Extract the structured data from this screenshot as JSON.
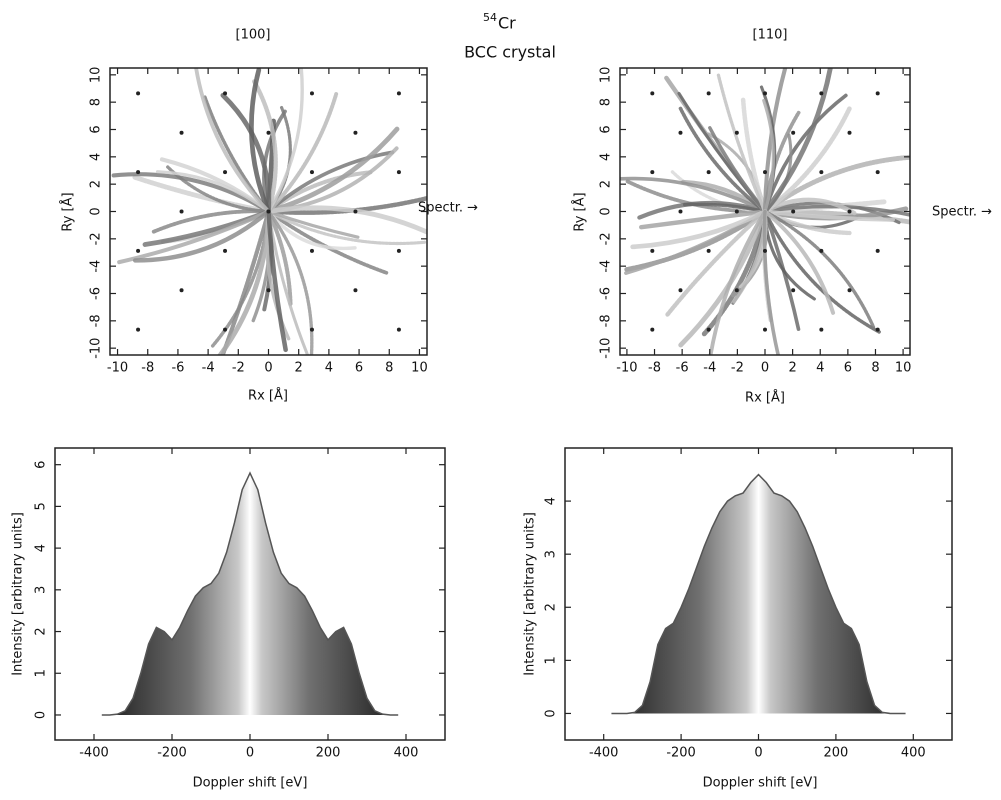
{
  "figure": {
    "title_superscript": "54",
    "title": "Cr",
    "subtitle": "BCC crystal"
  },
  "chart_data": [
    {
      "type": "scatter",
      "title": "[100]",
      "x_label": "Rx [Å]",
      "y_label": "Ry [Å]",
      "annotation": "Spectr. →",
      "x": [
        -8.64,
        -8.64,
        -8.64,
        -8.64,
        -5.76,
        -5.76,
        -5.76,
        -2.88,
        -2.88,
        -2.88,
        -2.88,
        0,
        0,
        0,
        2.88,
        2.88,
        2.88,
        2.88,
        5.76,
        5.76,
        5.76,
        8.64,
        8.64,
        8.64,
        8.64
      ],
      "y": [
        -8.64,
        -2.88,
        2.88,
        8.64,
        -5.76,
        0,
        5.76,
        -8.64,
        -2.88,
        2.88,
        8.64,
        -5.76,
        0,
        5.76,
        -8.64,
        -2.88,
        2.88,
        8.64,
        -5.76,
        0,
        5.76,
        -8.64,
        -2.88,
        2.88,
        8.64
      ],
      "color": "#222222",
      "xlim": [
        -10.5,
        10.5
      ],
      "ylim": [
        -10.5,
        10.5
      ],
      "xticks": [
        -10,
        -8,
        -6,
        -4,
        -2,
        0,
        2,
        4,
        6,
        8,
        10
      ],
      "yticks": [
        -10,
        -8,
        -6,
        -4,
        -2,
        0,
        2,
        4,
        6,
        8,
        10
      ]
    },
    {
      "type": "scatter",
      "title": "[110]",
      "x_label": "Rx [Å]",
      "y_label": "Ry [Å]",
      "annotation": "Spectr. →",
      "x": [
        -8.16,
        -8.16,
        -8.16,
        -8.16,
        -6.12,
        -6.12,
        -6.12,
        -4.08,
        -4.08,
        -4.08,
        -4.08,
        -2.04,
        -2.04,
        -2.04,
        0,
        0,
        0,
        0,
        2.04,
        2.04,
        2.04,
        4.08,
        4.08,
        4.08,
        4.08,
        6.12,
        6.12,
        6.12,
        8.16,
        8.16,
        8.16,
        8.16
      ],
      "y": [
        -8.64,
        -2.88,
        2.88,
        8.64,
        -5.76,
        0,
        5.76,
        -8.64,
        -2.88,
        2.88,
        8.64,
        -5.76,
        0,
        5.76,
        -8.64,
        -2.88,
        2.88,
        8.64,
        -5.76,
        0,
        5.76,
        -8.64,
        -2.88,
        2.88,
        8.64,
        -5.76,
        0,
        5.76,
        -8.64,
        -2.88,
        2.88,
        8.64
      ],
      "color": "#222222",
      "xlim": [
        -10.5,
        10.5
      ],
      "ylim": [
        -10.5,
        10.5
      ],
      "xticks": [
        -10,
        -8,
        -6,
        -4,
        -2,
        0,
        2,
        4,
        6,
        8,
        10
      ],
      "yticks": [
        -10,
        -8,
        -6,
        -4,
        -2,
        0,
        2,
        4,
        6,
        8,
        10
      ]
    },
    {
      "type": "area",
      "x_label": "Doppler shift [eV]",
      "y_label": "Intensity [arbitrary units]",
      "x": [
        -380,
        -360,
        -340,
        -320,
        -300,
        -280,
        -260,
        -240,
        -220,
        -200,
        -180,
        -160,
        -140,
        -120,
        -100,
        -80,
        -60,
        -40,
        -20,
        0,
        20,
        40,
        60,
        80,
        100,
        120,
        140,
        160,
        180,
        200,
        220,
        240,
        260,
        280,
        300,
        320,
        340,
        360,
        380
      ],
      "values": [
        0,
        0,
        0.02,
        0.1,
        0.4,
        1.0,
        1.7,
        2.1,
        2.0,
        1.8,
        2.1,
        2.5,
        2.85,
        3.05,
        3.15,
        3.4,
        3.9,
        4.6,
        5.4,
        5.8,
        5.4,
        4.6,
        3.9,
        3.4,
        3.15,
        3.05,
        2.85,
        2.5,
        2.1,
        1.8,
        2.0,
        2.1,
        1.7,
        1.0,
        0.4,
        0.1,
        0.02,
        0,
        0
      ],
      "color": "#555555",
      "xlim": [
        -500,
        500
      ],
      "ylim": [
        -0.6,
        6.4
      ],
      "xticks": [
        -400,
        -200,
        0,
        200,
        400
      ],
      "yticks": [
        0,
        1,
        2,
        3,
        4,
        5,
        6
      ]
    },
    {
      "type": "area",
      "x_label": "Doppler shift [eV]",
      "y_label": "Intensity [arbitrary units]",
      "x": [
        -380,
        -360,
        -340,
        -320,
        -300,
        -280,
        -260,
        -240,
        -220,
        -200,
        -180,
        -160,
        -140,
        -120,
        -100,
        -80,
        -60,
        -40,
        -20,
        0,
        20,
        40,
        60,
        80,
        100,
        120,
        140,
        160,
        180,
        200,
        220,
        240,
        260,
        280,
        300,
        320,
        340,
        360,
        380
      ],
      "values": [
        0,
        0,
        0,
        0.02,
        0.15,
        0.6,
        1.3,
        1.6,
        1.7,
        2.0,
        2.35,
        2.75,
        3.15,
        3.5,
        3.8,
        4.0,
        4.1,
        4.15,
        4.35,
        4.5,
        4.35,
        4.15,
        4.1,
        4.0,
        3.8,
        3.5,
        3.15,
        2.75,
        2.35,
        2.0,
        1.7,
        1.6,
        1.3,
        0.6,
        0.15,
        0.02,
        0,
        0,
        0
      ],
      "color": "#555555",
      "xlim": [
        -500,
        500
      ],
      "ylim": [
        -0.5,
        5
      ],
      "xticks": [
        -400,
        -200,
        0,
        200,
        400
      ],
      "yticks": [
        0,
        1,
        2,
        3,
        4
      ]
    }
  ]
}
